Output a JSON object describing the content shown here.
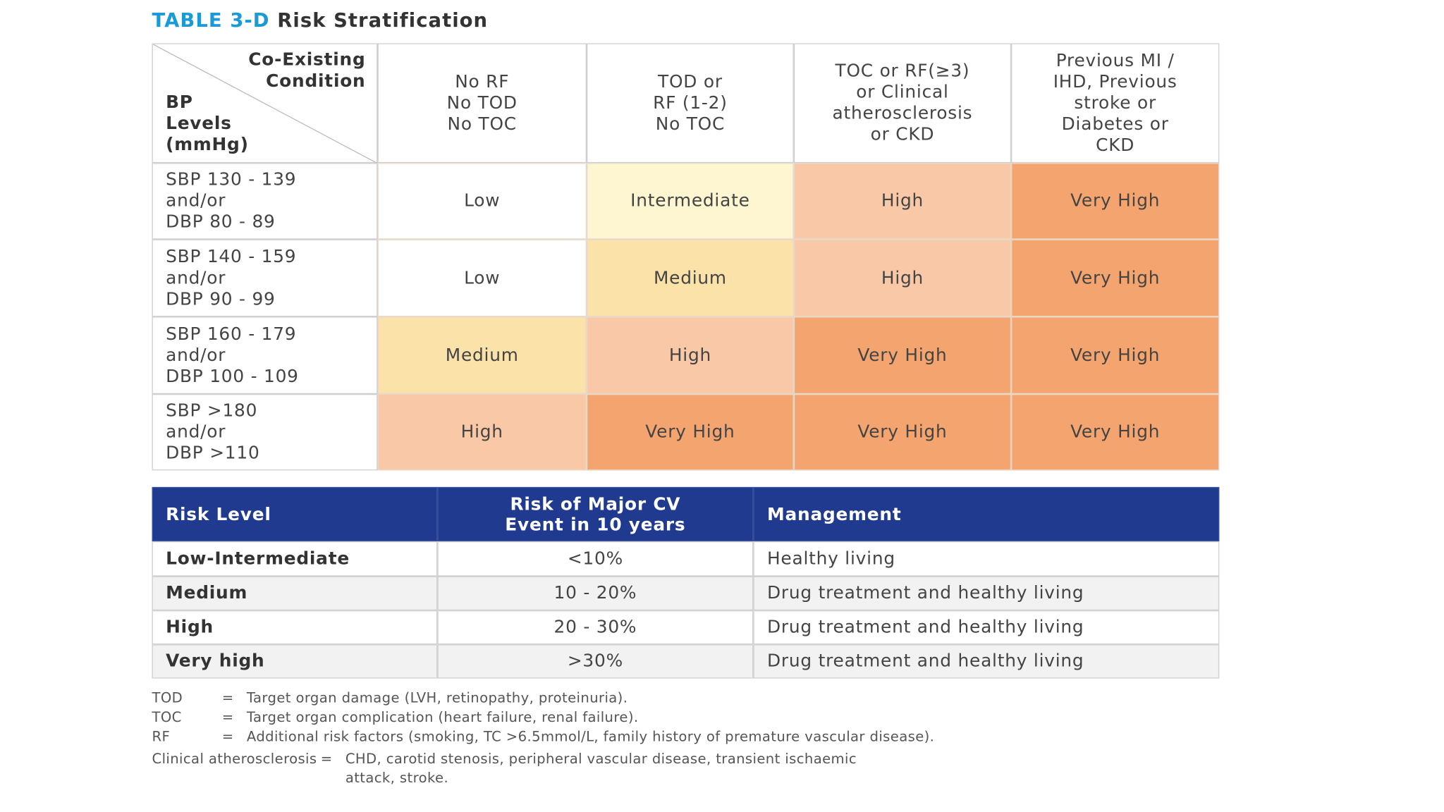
{
  "title": {
    "label": "TABLE 3-D",
    "text": "Risk Stratification"
  },
  "risk_table": {
    "corner": {
      "condition": [
        "Co-Existing",
        "Condition"
      ],
      "bp": [
        "BP",
        "Levels",
        "(mmHg)"
      ]
    },
    "columns": [
      [
        "No RF",
        "No TOD",
        "No TOC"
      ],
      [
        "TOD or",
        "RF (1-2)",
        "No TOC"
      ],
      [
        "TOC or RF(≥3)",
        "or Clinical",
        "atherosclerosis",
        "or CKD"
      ],
      [
        "Previous MI /",
        "IHD, Previous",
        "stroke or",
        "Diabetes or",
        "CKD"
      ]
    ],
    "rows": [
      {
        "label": [
          "SBP 130 - 139",
          "and/or",
          "DBP 80 - 89"
        ],
        "cells": [
          "Low",
          "Intermediate",
          "High",
          "Very High"
        ]
      },
      {
        "label": [
          "SBP 140 - 159",
          "and/or",
          "DBP 90 - 99"
        ],
        "cells": [
          "Low",
          "Medium",
          "High",
          "Very High"
        ]
      },
      {
        "label": [
          "SBP 160 - 179",
          "and/or",
          "DBP 100 - 109"
        ],
        "cells": [
          "Medium",
          "High",
          "Very High",
          "Very High"
        ]
      },
      {
        "label": [
          "SBP >180",
          "and/or",
          "DBP >110"
        ],
        "cells": [
          "High",
          "Very High",
          "Very High",
          "Very High"
        ]
      }
    ],
    "colors": {
      "Low": "#ffffff",
      "Intermediate": "#fdf6d0",
      "Medium": "#fbe2a8",
      "High": "#f9c8a6",
      "Very High": "#f4a46e"
    }
  },
  "management_table": {
    "header": [
      [
        "Risk Level"
      ],
      [
        "Risk of Major CV",
        "Event in 10 years"
      ],
      [
        "Management"
      ]
    ],
    "rows": [
      [
        "Low-Intermediate",
        "<10%",
        "Healthy living"
      ],
      [
        "Medium",
        "10 - 20%",
        "Drug treatment and healthy living"
      ],
      [
        "High",
        "20 - 30%",
        "Drug treatment and healthy living"
      ],
      [
        "Very high",
        ">30%",
        "Drug treatment and healthy living"
      ]
    ]
  },
  "footnotes": [
    {
      "term": "TOD",
      "sep": "=",
      "text": [
        "Target organ damage (LVH, retinopathy, proteinuria)."
      ]
    },
    {
      "term": "TOC",
      "sep": "=",
      "text": [
        "Target organ complication (heart failure, renal failure)."
      ]
    },
    {
      "term": "RF",
      "sep": "=",
      "text": [
        "Additional risk factors (smoking, TC >6.5mmol/L, family history of premature vascular disease)."
      ]
    },
    {
      "term": "Clinical atherosclerosis",
      "sep": "=",
      "text": [
        "CHD, carotid stenosis, peripheral vascular disease, transient ischaemic",
        "attack, stroke."
      ]
    }
  ]
}
